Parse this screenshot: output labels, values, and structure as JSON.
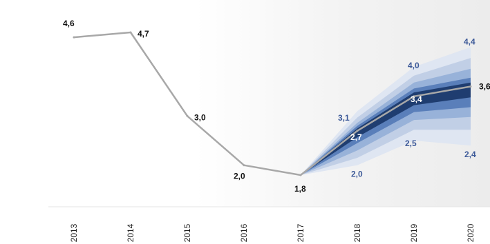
{
  "chart_data": {
    "type": "line",
    "x": [
      "2013",
      "2014",
      "2015",
      "2016",
      "2017",
      "2018",
      "2019",
      "2020"
    ],
    "series": [
      {
        "values": [
          4.6,
          4.7,
          3.0,
          2.0,
          1.8,
          2.7,
          3.4,
          3.6
        ]
      }
    ],
    "fan": {
      "start": "2017",
      "x": [
        "2017",
        "2018",
        "2019",
        "2020"
      ],
      "bands": [
        {
          "lower": [
            1.8,
            2.0,
            2.5,
            2.4
          ],
          "upper": [
            1.8,
            3.1,
            4.0,
            4.4
          ]
        },
        {
          "lower": [
            1.8,
            2.15,
            2.72,
            2.72
          ],
          "upper": [
            1.8,
            2.97,
            3.82,
            4.18
          ]
        },
        {
          "lower": [
            1.8,
            2.3,
            2.92,
            2.98
          ],
          "upper": [
            1.8,
            2.86,
            3.68,
            3.96
          ]
        },
        {
          "lower": [
            1.8,
            2.45,
            3.08,
            3.18
          ],
          "upper": [
            1.8,
            2.8,
            3.56,
            3.78
          ]
        },
        {
          "lower": [
            1.8,
            2.57,
            3.22,
            3.38
          ],
          "upper": [
            1.8,
            2.75,
            3.48,
            3.68
          ]
        }
      ],
      "band_colors": [
        "#dfe6f2",
        "#c1cfe6",
        "#98b2d9",
        "#5a7fba",
        "#1f3d70"
      ]
    },
    "labels": [
      {
        "x": "2013",
        "y": 4.6,
        "text": "4,6",
        "color": "#111111"
      },
      {
        "x": "2014",
        "y": 4.7,
        "text": "4,7",
        "color": "#111111"
      },
      {
        "x": "2015",
        "y": 3.0,
        "text": "3,0",
        "color": "#111111"
      },
      {
        "x": "2016",
        "y": 2.0,
        "text": "2,0",
        "color": "#111111"
      },
      {
        "x": "2017",
        "y": 1.8,
        "text": "1,8",
        "color": "#111111"
      },
      {
        "x": "2018",
        "y": 3.1,
        "text": "3,1",
        "color": "#3d5a99"
      },
      {
        "x": "2018",
        "y": 2.7,
        "text": "2,7",
        "color": "#ffffff"
      },
      {
        "x": "2018",
        "y": 2.0,
        "text": "2,0",
        "color": "#3d5a99"
      },
      {
        "x": "2019",
        "y": 4.0,
        "text": "4,0",
        "color": "#3d5a99"
      },
      {
        "x": "2019",
        "y": 3.4,
        "text": "3,4",
        "color": "#ffffff"
      },
      {
        "x": "2019",
        "y": 2.5,
        "text": "2,5",
        "color": "#3d5a99"
      },
      {
        "x": "2020",
        "y": 4.4,
        "text": "4,4",
        "color": "#3d5a99"
      },
      {
        "x": "2020",
        "y": 3.6,
        "text": "3,6",
        "color": "#111111"
      },
      {
        "x": "2020",
        "y": 2.4,
        "text": "2,4",
        "color": "#3d5a99"
      }
    ],
    "ylim": [
      1.0,
      5.0
    ],
    "grid": false,
    "legend": "none",
    "line_color": "#a8a8a8"
  }
}
